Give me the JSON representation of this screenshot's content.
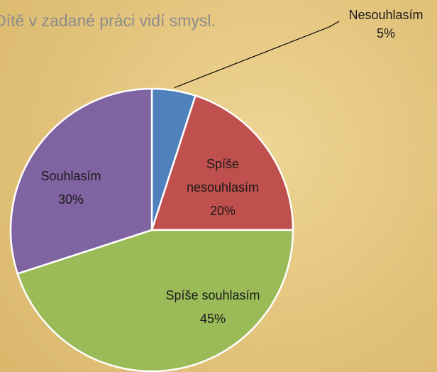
{
  "chart_data": {
    "type": "pie",
    "title": "Dítě v zadané práci vidí smysl.",
    "categories": [
      "Nesouhlasím",
      "Spíše nesouhlasím",
      "Spíše souhlasím",
      "Souhlasím"
    ],
    "values": [
      5,
      20,
      45,
      30
    ],
    "value_labels": [
      "5%",
      "20%",
      "45%",
      "30%"
    ],
    "colors": [
      "#4f81bd",
      "#c0504d",
      "#9bbb59",
      "#8064a2"
    ]
  }
}
